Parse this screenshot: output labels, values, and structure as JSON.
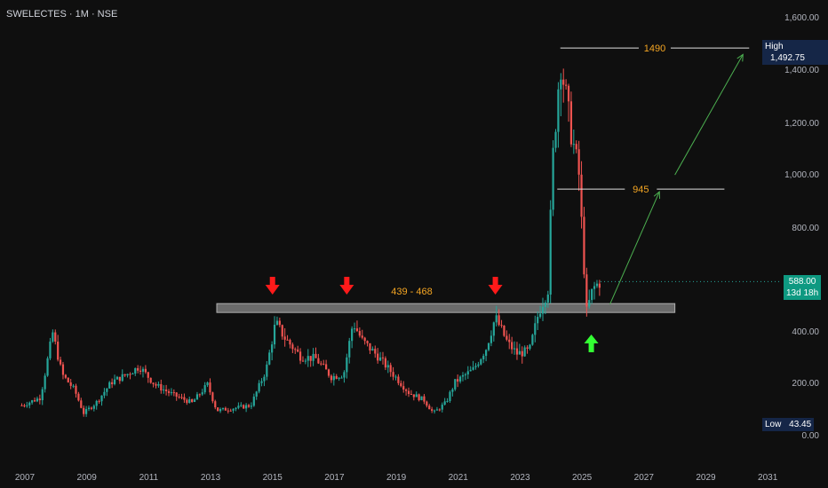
{
  "header": {
    "symbol": "SWELECTES · 1M · NSE"
  },
  "colors": {
    "background": "#0f0f0f",
    "up": "#26a69a",
    "down": "#ef5350",
    "annotation_orange": "#f5a623",
    "arrow_red": "#ff1a1a",
    "arrow_green": "#33ff33",
    "trend_green": "#4caf50",
    "zone_fill": "#6b6b6b",
    "badge_high_low": "#152647",
    "badge_last": "#0e9981"
  },
  "badges": {
    "high_label": "High",
    "high_value": "1,492.75",
    "low_label": "Low",
    "low_value": "43.45",
    "last_value": "588.00",
    "countdown": "13d 18h"
  },
  "chart_data": {
    "type": "candlestick",
    "title": "SWELECTES · 1M · NSE",
    "xlabel": "",
    "ylabel": "",
    "x_ticks": [
      "2007",
      "2009",
      "2011",
      "2013",
      "2015",
      "2017",
      "2019",
      "2021",
      "2023",
      "2025",
      "2027",
      "2029",
      "2031"
    ],
    "y_ticks": [
      "1,600.00",
      "1,400.00",
      "1,200.00",
      "1,000.00",
      "800.00",
      "400.00",
      "200.00",
      "0.00"
    ],
    "ylim": [
      0,
      1600
    ],
    "xlim": [
      2006.7,
      2031.5
    ],
    "grid": false,
    "price_path": [
      [
        2006.9,
        110
      ],
      [
        2007.5,
        140
      ],
      [
        2007.9,
        390
      ],
      [
        2008.2,
        230
      ],
      [
        2008.6,
        170
      ],
      [
        2008.9,
        80
      ],
      [
        2009.3,
        120
      ],
      [
        2009.8,
        200
      ],
      [
        2010.3,
        230
      ],
      [
        2010.7,
        260
      ],
      [
        2011.2,
        190
      ],
      [
        2011.8,
        150
      ],
      [
        2012.4,
        120
      ],
      [
        2012.9,
        190
      ],
      [
        2013.2,
        90
      ],
      [
        2013.8,
        100
      ],
      [
        2014.3,
        110
      ],
      [
        2014.8,
        250
      ],
      [
        2015.1,
        430
      ],
      [
        2015.4,
        370
      ],
      [
        2015.9,
        300
      ],
      [
        2016.4,
        290
      ],
      [
        2016.9,
        220
      ],
      [
        2017.3,
        230
      ],
      [
        2017.6,
        430
      ],
      [
        2017.9,
        360
      ],
      [
        2018.4,
        300
      ],
      [
        2018.9,
        230
      ],
      [
        2019.4,
        160
      ],
      [
        2019.9,
        130
      ],
      [
        2020.2,
        80
      ],
      [
        2020.6,
        120
      ],
      [
        2020.9,
        200
      ],
      [
        2021.5,
        250
      ],
      [
        2021.9,
        330
      ],
      [
        2022.2,
        450
      ],
      [
        2022.6,
        350
      ],
      [
        2022.9,
        310
      ],
      [
        2023.3,
        320
      ],
      [
        2023.6,
        470
      ],
      [
        2023.9,
        560
      ],
      [
        2024.05,
        1050
      ],
      [
        2024.3,
        1450
      ],
      [
        2024.6,
        1200
      ],
      [
        2024.9,
        1000
      ],
      [
        2025.0,
        780
      ],
      [
        2025.15,
        470
      ],
      [
        2025.35,
        560
      ],
      [
        2025.6,
        590
      ]
    ],
    "levels": [
      {
        "label": "1490",
        "value": 1490,
        "x_start": 2024.3,
        "x_end": 2030.4
      },
      {
        "label": "945",
        "value": 945,
        "x_start": 2024.2,
        "x_end": 2029.6
      }
    ],
    "zone": {
      "label": "439 - 468",
      "low": 439,
      "high": 468,
      "x_start": 2013.2,
      "x_end": 2028.0
    },
    "red_arrows_x": [
      2015.0,
      2017.4,
      2022.2
    ],
    "green_arrow_x": 2025.3,
    "trend_lines": [
      {
        "from": [
          2025.9,
          500
        ],
        "to": [
          2027.5,
          935
        ]
      },
      {
        "from": [
          2028.0,
          1000
        ],
        "to": [
          2030.2,
          1465
        ]
      }
    ],
    "high": 1492.75,
    "low": 43.45,
    "last": 588.0
  }
}
